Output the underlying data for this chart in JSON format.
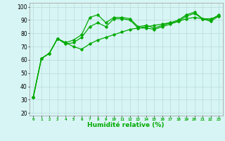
{
  "title": "",
  "xlabel": "Humidité relative (%)",
  "ylabel": "",
  "background_color": "#d8f5f5",
  "grid_color": "#b8dada",
  "line_color": "#00aa00",
  "xlim": [
    -0.5,
    23.5
  ],
  "ylim": [
    18,
    103
  ],
  "yticks": [
    20,
    30,
    40,
    50,
    60,
    70,
    80,
    90,
    100
  ],
  "xticks": [
    0,
    1,
    2,
    3,
    4,
    5,
    6,
    7,
    8,
    9,
    10,
    11,
    12,
    13,
    14,
    15,
    16,
    17,
    18,
    19,
    20,
    21,
    22,
    23
  ],
  "series": [
    [
      32,
      61,
      65,
      76,
      73,
      75,
      79,
      92,
      94,
      88,
      92,
      92,
      91,
      85,
      86,
      84,
      86,
      88,
      90,
      94,
      96,
      91,
      90,
      94
    ],
    [
      32,
      61,
      65,
      76,
      72,
      73,
      77,
      85,
      88,
      85,
      91,
      91,
      90,
      84,
      84,
      83,
      85,
      87,
      89,
      93,
      95,
      91,
      89,
      93
    ],
    [
      32,
      61,
      65,
      76,
      73,
      70,
      68,
      72,
      75,
      77,
      79,
      81,
      83,
      84,
      85,
      86,
      87,
      88,
      89,
      91,
      92,
      91,
      91,
      93
    ]
  ],
  "marker": "D",
  "markersize": 1.8,
  "linewidth": 0.9,
  "xlabel_fontsize": 6.5,
  "xlabel_color": "#00aa00",
  "ytick_fontsize": 5.5,
  "xtick_fontsize": 4.2
}
